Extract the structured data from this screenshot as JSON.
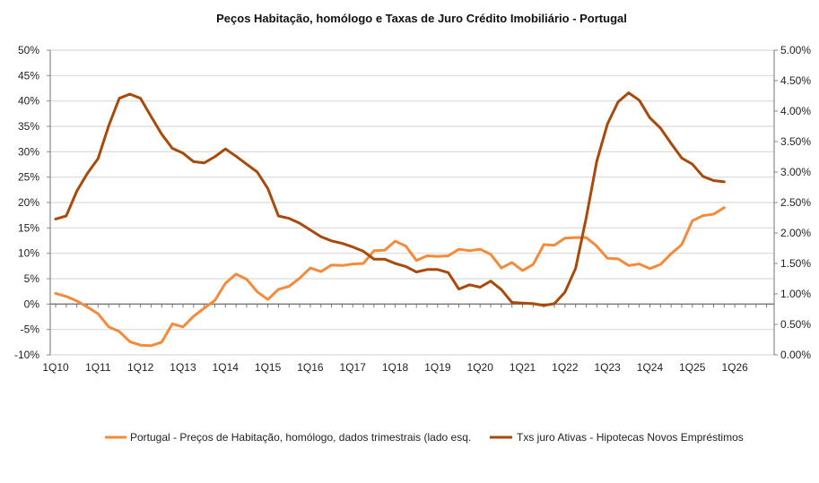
{
  "chart_data": {
    "type": "line",
    "title": "Peços Habitação, homólogo e Taxas de Juro Crédito Imobiliário  -  Portugal",
    "x_tick_labels": [
      "1Q10",
      "1Q11",
      "1Q12",
      "1Q13",
      "1Q14",
      "1Q15",
      "1Q16",
      "1Q17",
      "1Q18",
      "1Q19",
      "1Q20",
      "1Q21",
      "1Q22",
      "1Q23",
      "1Q24",
      "1Q25",
      "1Q26"
    ],
    "x_start": "1Q10",
    "x_step": "quarter",
    "y_left": {
      "min": -10,
      "max": 50,
      "step": 5,
      "tick_labels": [
        "-10%",
        "-5%",
        "0%",
        "5%",
        "10%",
        "15%",
        "20%",
        "25%",
        "30%",
        "35%",
        "40%",
        "45%",
        "50%"
      ]
    },
    "y_right": {
      "min": 0,
      "max": 5,
      "step": 0.5,
      "tick_labels": [
        "0.00%",
        "0.50%",
        "1.00%",
        "1.50%",
        "2.00%",
        "2.50%",
        "3.00%",
        "3.50%",
        "4.00%",
        "4.50%",
        "5.00%"
      ]
    },
    "grid": true,
    "legend_position": "bottom",
    "series": [
      {
        "name": "Portugal - Preços de Habitação, homólogo, dados trimestrais (lado esq.",
        "axis": "left",
        "color": "#F58B3A",
        "values": [
          2.1,
          1.5,
          0.6,
          -0.6,
          -1.9,
          -4.5,
          -5.4,
          -7.4,
          -8.1,
          -8.2,
          -7.5,
          -3.9,
          -4.5,
          -2.4,
          -0.8,
          0.7,
          4.1,
          5.9,
          4.9,
          2.4,
          0.9,
          2.9,
          3.5,
          5.1,
          7.1,
          6.4,
          7.7,
          7.6,
          7.9,
          8.0,
          10.5,
          10.6,
          12.4,
          11.4,
          8.6,
          9.5,
          9.4,
          9.5,
          10.8,
          10.5,
          10.8,
          9.8,
          7.1,
          8.2,
          6.6,
          7.8,
          11.7,
          11.6,
          13.0,
          13.1,
          13.1,
          11.4,
          9.0,
          8.9,
          7.6,
          7.9,
          7.0,
          7.8,
          9.9,
          11.7,
          16.4,
          17.4,
          17.7,
          19.0
        ]
      },
      {
        "name": "Txs juro Ativas - Hipotecas Novos Empréstimos",
        "axis": "right",
        "color": "#A84A0B",
        "values": [
          2.23,
          2.28,
          2.69,
          2.98,
          3.22,
          3.76,
          4.21,
          4.28,
          4.21,
          3.91,
          3.62,
          3.39,
          3.31,
          3.17,
          3.15,
          3.25,
          3.38,
          3.26,
          3.13,
          3.0,
          2.73,
          2.28,
          2.24,
          2.16,
          2.05,
          1.94,
          1.87,
          1.83,
          1.77,
          1.7,
          1.57,
          1.57,
          1.5,
          1.45,
          1.36,
          1.4,
          1.4,
          1.35,
          1.08,
          1.15,
          1.11,
          1.21,
          1.07,
          0.86,
          0.85,
          0.84,
          0.81,
          0.84,
          1.03,
          1.42,
          2.25,
          3.18,
          3.79,
          4.15,
          4.3,
          4.18,
          3.89,
          3.72,
          3.47,
          3.23,
          3.13,
          2.93,
          2.86,
          2.84
        ]
      }
    ]
  }
}
